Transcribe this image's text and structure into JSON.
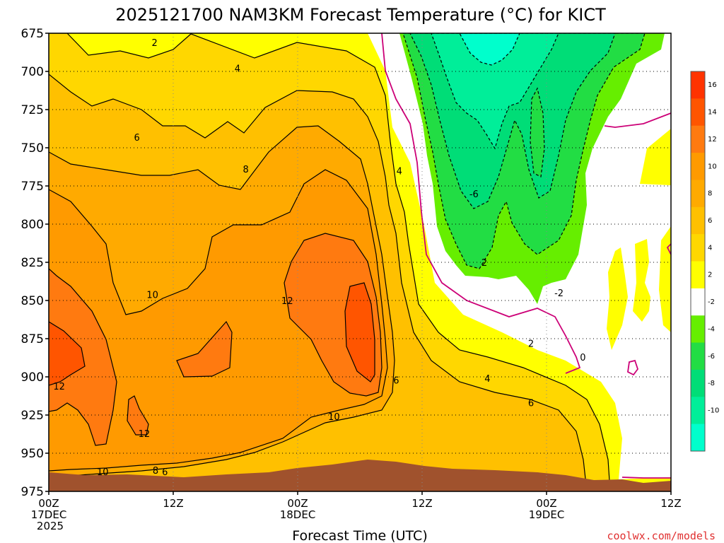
{
  "chart_data": {
    "type": "heatmap",
    "title": "2025121700 NAM3KM Forecast Temperature (°C) for KICT",
    "xlabel": "Forecast Time (UTC)",
    "ylabel": "",
    "credit": "coolwx.com/models",
    "y_axis": {
      "scale": "pressure (hPa), reversed",
      "ylim": [
        975,
        675
      ],
      "ticks": [
        "675",
        "700",
        "725",
        "750",
        "775",
        "800",
        "825",
        "850",
        "875",
        "900",
        "925",
        "950",
        "975"
      ]
    },
    "x_axis": {
      "xlim": [
        "2025-12-17T00Z",
        "2025-12-19T12Z"
      ],
      "ticks": [
        {
          "hour": 0,
          "l1": "00Z",
          "l2": "17DEC",
          "l3": "2025"
        },
        {
          "hour": 12,
          "l1": "12Z",
          "l2": "",
          "l3": ""
        },
        {
          "hour": 24,
          "l1": "00Z",
          "l2": "18DEC",
          "l3": ""
        },
        {
          "hour": 36,
          "l1": "12Z",
          "l2": "",
          "l3": ""
        },
        {
          "hour": 48,
          "l1": "00Z",
          "l2": "19DEC",
          "l3": ""
        },
        {
          "hour": 60,
          "l1": "12Z",
          "l2": "",
          "l3": ""
        }
      ]
    },
    "grid": true,
    "colorbar": {
      "placement": "right",
      "labels": [
        "16",
        "14",
        "12",
        "10",
        "8",
        "6",
        "4",
        "2",
        "-2",
        "-4",
        "-6",
        "-8",
        "-10"
      ],
      "bins": [
        {
          "lo": 16,
          "hi": 18,
          "color": "#ff3300"
        },
        {
          "lo": 14,
          "hi": 16,
          "color": "#ff5500"
        },
        {
          "lo": 12,
          "hi": 14,
          "color": "#ff7a10"
        },
        {
          "lo": 10,
          "hi": 12,
          "color": "#ff9a00"
        },
        {
          "lo": 8,
          "hi": 10,
          "color": "#ffaa00"
        },
        {
          "lo": 6,
          "hi": 8,
          "color": "#ffc000"
        },
        {
          "lo": 4,
          "hi": 6,
          "color": "#ffd700"
        },
        {
          "lo": 2,
          "hi": 4,
          "color": "#ffff00"
        },
        {
          "lo": -2,
          "hi": 2,
          "color": "#ffffff"
        },
        {
          "lo": -4,
          "hi": -2,
          "color": "#66ee00"
        },
        {
          "lo": -6,
          "hi": -4,
          "color": "#22dd44"
        },
        {
          "lo": -8,
          "hi": -6,
          "color": "#00dd77"
        },
        {
          "lo": -10,
          "hi": -8,
          "color": "#00ee99"
        },
        {
          "lo": -12,
          "hi": -10,
          "color": "#00ffcc"
        }
      ]
    },
    "contour_labels": [
      {
        "text": "2",
        "hour": 10.2,
        "p": 681
      },
      {
        "text": "4",
        "hour": 18.2,
        "p": 698
      },
      {
        "text": "6",
        "hour": 8.5,
        "p": 743
      },
      {
        "text": "8",
        "hour": 19.0,
        "p": 764
      },
      {
        "text": "10",
        "hour": 10.0,
        "p": 846
      },
      {
        "text": "12",
        "hour": 23.0,
        "p": 850
      },
      {
        "text": "12",
        "hour": 1.0,
        "p": 906
      },
      {
        "text": "12",
        "hour": 9.2,
        "p": 937
      },
      {
        "text": "10",
        "hour": 27.5,
        "p": 926
      },
      {
        "text": "10",
        "hour": 5.2,
        "p": 962
      },
      {
        "text": "8",
        "hour": 10.3,
        "p": 961
      },
      {
        "text": "6",
        "hour": 11.2,
        "p": 962
      },
      {
        "text": "6",
        "hour": 33.5,
        "p": 902
      },
      {
        "text": "4",
        "hour": 33.8,
        "p": 765
      },
      {
        "text": "-6",
        "hour": 41.0,
        "p": 780
      },
      {
        "text": "2",
        "hour": 42.0,
        "p": 825
      },
      {
        "text": "-2",
        "hour": 49.2,
        "p": 845
      },
      {
        "text": "2",
        "hour": 46.5,
        "p": 878
      },
      {
        "text": "4",
        "hour": 42.3,
        "p": 901
      },
      {
        "text": "6",
        "hour": 46.5,
        "p": 917
      },
      {
        "text": "0",
        "hour": 51.5,
        "p": 887
      }
    ]
  }
}
